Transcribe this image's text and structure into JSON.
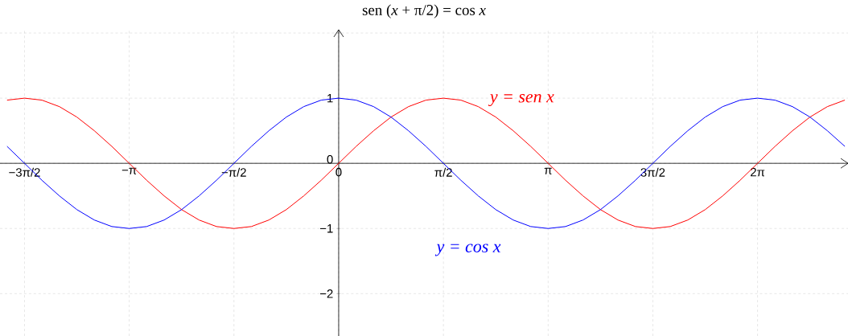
{
  "chart_data": {
    "type": "line",
    "title": "sen (*x* + π/2) = cos *x*",
    "xlim": [
      -5.08,
      7.64
    ],
    "ylim": [
      -2.65,
      2.05
    ],
    "xticks": [
      {
        "value": -4.712,
        "label": "−3π/2"
      },
      {
        "value": -3.142,
        "label": "−π"
      },
      {
        "value": -1.571,
        "label": "−π/2"
      },
      0,
      {
        "value": 1.571,
        "label": "π/2"
      },
      {
        "value": 3.142,
        "label": "π"
      },
      {
        "value": 4.712,
        "label": "3π/2"
      },
      {
        "value": 6.283,
        "label": "2π"
      }
    ],
    "yticks": [
      {
        "value": -2,
        "label": "−2"
      },
      {
        "value": -1,
        "label": "−1"
      },
      0,
      1,
      {
        "value": 2,
        "label": null
      }
    ],
    "grid": true,
    "marker": "none",
    "line_style": "solid",
    "x": [
      -4.974,
      -4.712,
      -4.451,
      -4.189,
      -3.927,
      -3.665,
      -3.403,
      -3.142,
      -2.88,
      -2.618,
      -2.356,
      -2.094,
      -1.833,
      -1.571,
      -1.309,
      -1.047,
      -0.785,
      -0.524,
      -0.262,
      0,
      0.262,
      0.524,
      0.785,
      1.047,
      1.309,
      1.571,
      1.833,
      2.094,
      2.356,
      2.618,
      2.88,
      3.142,
      3.403,
      3.665,
      3.927,
      4.189,
      4.451,
      4.712,
      4.974,
      5.236,
      5.498,
      5.76,
      6.021,
      6.283,
      6.545,
      6.807,
      7.069,
      7.33,
      7.592
    ],
    "series": [
      {
        "name": "y = sen x",
        "color": "#ff0000",
        "values": [
          0.97,
          1,
          0.97,
          0.87,
          0.71,
          0.5,
          0.26,
          0,
          -0.26,
          -0.5,
          -0.71,
          -0.87,
          -0.97,
          -1,
          -0.97,
          -0.87,
          -0.71,
          -0.5,
          -0.26,
          0,
          0.26,
          0.5,
          0.71,
          0.87,
          0.97,
          1,
          0.97,
          0.87,
          0.71,
          0.5,
          0.26,
          0,
          -0.26,
          -0.5,
          -0.71,
          -0.87,
          -0.97,
          -1,
          -0.97,
          -0.87,
          -0.71,
          -0.5,
          -0.26,
          0,
          0.26,
          0.5,
          0.71,
          0.87,
          0.97
        ]
      },
      {
        "name": "y = cos x",
        "color": "#0000ff",
        "values": [
          0.26,
          0,
          -0.26,
          -0.5,
          -0.71,
          -0.87,
          -0.97,
          -1,
          -0.97,
          -0.87,
          -0.71,
          -0.5,
          -0.26,
          0,
          0.26,
          0.5,
          0.71,
          0.87,
          0.97,
          1,
          0.97,
          0.87,
          0.71,
          0.5,
          0.26,
          0,
          -0.26,
          -0.5,
          -0.71,
          -0.87,
          -0.97,
          -1,
          -0.97,
          -0.87,
          -0.71,
          -0.5,
          -0.26,
          0,
          0.26,
          0.5,
          0.71,
          0.87,
          0.97,
          1,
          0.97,
          0.87,
          0.71,
          0.5,
          0.26
        ]
      }
    ]
  }
}
